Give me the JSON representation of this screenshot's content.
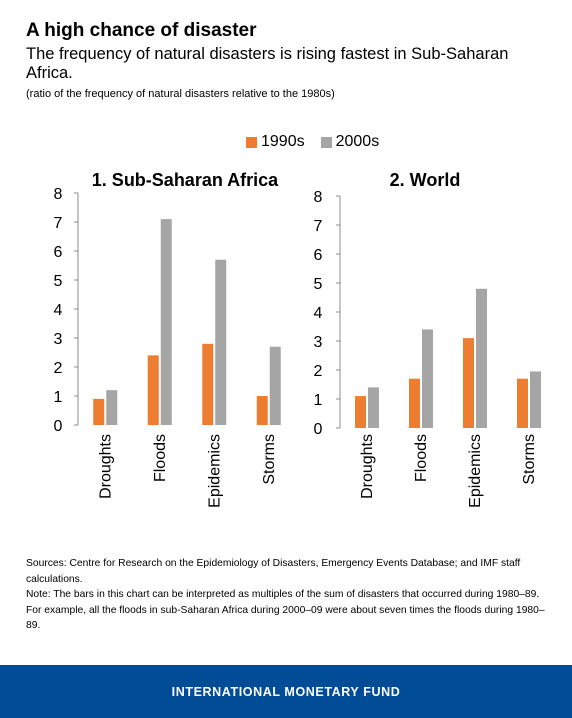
{
  "header": {
    "title": "A high chance of disaster",
    "subtitle": "The frequency of natural disasters is rising fastest in Sub-Saharan Africa.",
    "unit_note": "(ratio of the frequency of natural disasters relative to the 1980s)"
  },
  "legend": [
    "1990s",
    "2000s"
  ],
  "colors": {
    "s1990": "#ed7d31",
    "s2000": "#a5a5a5",
    "footer": "#004c97"
  },
  "chart_data": [
    {
      "type": "bar",
      "title": "1. Sub-Saharan Africa",
      "categories": [
        "Droughts",
        "Floods",
        "Epidemics",
        "Storms"
      ],
      "series": [
        {
          "name": "1990s",
          "values": [
            0.9,
            2.4,
            2.8,
            1.0
          ]
        },
        {
          "name": "2000s",
          "values": [
            1.2,
            7.1,
            5.7,
            2.7
          ]
        }
      ],
      "ylim": [
        0,
        8
      ],
      "yticks": [
        "0",
        "1",
        "2",
        "3",
        "4",
        "5",
        "6",
        "7",
        "8"
      ]
    },
    {
      "type": "bar",
      "title": "2. World",
      "categories": [
        "Droughts",
        "Floods",
        "Epidemics",
        "Storms"
      ],
      "series": [
        {
          "name": "1990s",
          "values": [
            1.1,
            1.7,
            3.1,
            1.7
          ]
        },
        {
          "name": "2000s",
          "values": [
            1.4,
            3.4,
            4.8,
            1.95
          ]
        }
      ],
      "ylim": [
        0,
        8
      ],
      "yticks": [
        "0",
        "1",
        "2",
        "3",
        "4",
        "5",
        "6",
        "7",
        "8"
      ]
    }
  ],
  "sources": {
    "line1": "Sources: Centre for Research on the Epidemiology of Disasters, Emergency Events Database; and IMF staff calculations.",
    "line2": "Note: The bars in this chart can be interpreted as multiples of the sum of disasters that occurred during 1980–89. For example, all the floods in sub-Saharan Africa during 2000–09 were about seven times the floods during 1980–89."
  },
  "footer": {
    "text": "INTERNATIONAL MONETARY FUND"
  }
}
